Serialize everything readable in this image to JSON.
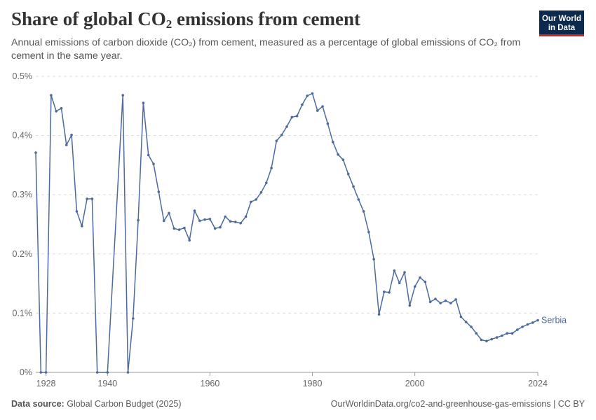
{
  "header": {
    "title_main": "Share of global CO",
    "title_sub": "2",
    "title_rest": " emissions from cement",
    "subtitle": "Annual emissions of carbon dioxide (CO₂) from cement, measured as a percentage of global emissions of CO₂ from cement in the same year."
  },
  "logo": {
    "line1": "Our World",
    "line2": "in Data"
  },
  "footer": {
    "source_label": "Data source:",
    "source_text": "Global Carbon Budget (2025)",
    "url_text": "OurWorldinData.org/co2-and-greenhouse-gas-emissions | CC BY"
  },
  "colors": {
    "series": "#4c6a9c",
    "grid": "#dddddd",
    "axis": "#666666",
    "logo_bg": "#0c2a4d",
    "logo_accent": "#ce261e"
  },
  "chart_data": {
    "type": "line",
    "title": "Share of global CO₂ emissions from cement",
    "xlabel": "",
    "ylabel": "",
    "xlim": [
      1926,
      2024
    ],
    "ylim": [
      0,
      0.5
    ],
    "y_ticks": [
      0,
      0.1,
      0.2,
      0.3,
      0.4,
      0.5
    ],
    "y_tick_labels": [
      "0%",
      "0.1%",
      "0.2%",
      "0.3%",
      "0.4%",
      "0.5%"
    ],
    "x_ticks": [
      1928,
      1940,
      1960,
      1980,
      2000,
      2024
    ],
    "x_tick_labels": [
      "1928",
      "1940",
      "1960",
      "1980",
      "2000",
      "2024"
    ],
    "grid": true,
    "series": [
      {
        "name": "Serbia",
        "x": [
          1926,
          1927,
          1928,
          1929,
          1930,
          1931,
          1932,
          1933,
          1934,
          1935,
          1936,
          1937,
          1938,
          1940,
          1943,
          1944,
          1945,
          1946,
          1947,
          1948,
          1949,
          1950,
          1951,
          1952,
          1953,
          1954,
          1955,
          1956,
          1957,
          1958,
          1959,
          1960,
          1961,
          1962,
          1963,
          1964,
          1965,
          1966,
          1967,
          1968,
          1969,
          1970,
          1971,
          1972,
          1973,
          1974,
          1975,
          1976,
          1977,
          1978,
          1979,
          1980,
          1981,
          1982,
          1983,
          1984,
          1985,
          1986,
          1987,
          1988,
          1989,
          1990,
          1991,
          1992,
          1993,
          1994,
          1995,
          1996,
          1997,
          1998,
          1999,
          2000,
          2001,
          2002,
          2003,
          2004,
          2005,
          2006,
          2007,
          2008,
          2009,
          2010,
          2011,
          2012,
          2013,
          2014,
          2015,
          2016,
          2017,
          2018,
          2019,
          2020,
          2021,
          2022,
          2023,
          2024
        ],
        "values": [
          0.371,
          0.0,
          0.0,
          0.468,
          0.441,
          0.446,
          0.384,
          0.401,
          0.272,
          0.247,
          0.293,
          0.293,
          0.0,
          0.0,
          0.468,
          0.0,
          0.091,
          0.257,
          0.455,
          0.367,
          0.352,
          0.305,
          0.256,
          0.269,
          0.243,
          0.241,
          0.244,
          0.223,
          0.273,
          0.256,
          0.258,
          0.259,
          0.243,
          0.245,
          0.263,
          0.255,
          0.254,
          0.252,
          0.263,
          0.288,
          0.292,
          0.304,
          0.32,
          0.345,
          0.391,
          0.401,
          0.415,
          0.431,
          0.433,
          0.452,
          0.467,
          0.471,
          0.442,
          0.449,
          0.42,
          0.389,
          0.368,
          0.359,
          0.335,
          0.314,
          0.292,
          0.272,
          0.237,
          0.191,
          0.098,
          0.136,
          0.135,
          0.172,
          0.151,
          0.169,
          0.113,
          0.145,
          0.16,
          0.153,
          0.119,
          0.124,
          0.117,
          0.121,
          0.117,
          0.123,
          0.094,
          0.085,
          0.077,
          0.066,
          0.055,
          0.053,
          0.056,
          0.059,
          0.062,
          0.066,
          0.066,
          0.072,
          0.077,
          0.081,
          0.084,
          0.088
        ]
      }
    ]
  }
}
